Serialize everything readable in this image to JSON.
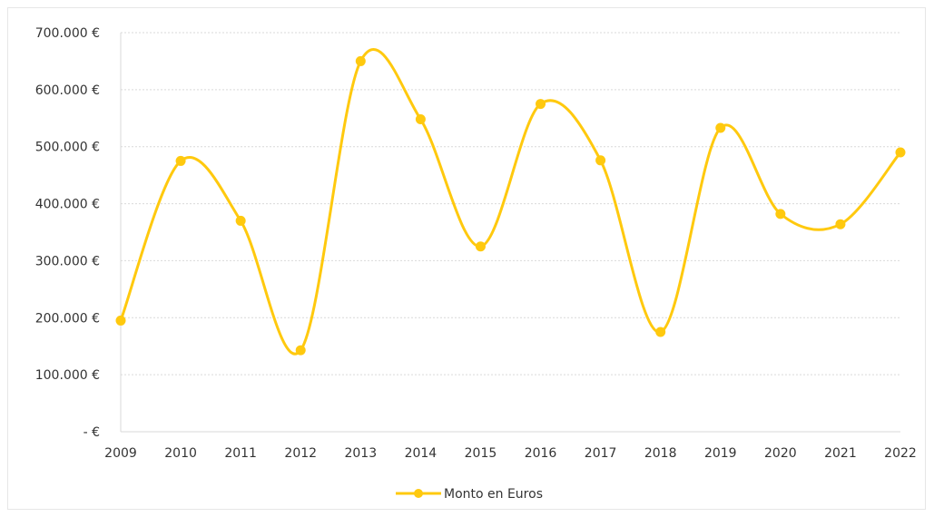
{
  "chart_data": {
    "type": "line",
    "smooth": true,
    "title": "",
    "xlabel": "",
    "ylabel": "",
    "x": [
      "2009",
      "2010",
      "2011",
      "2012",
      "2013",
      "2014",
      "2015",
      "2016",
      "2017",
      "2018",
      "2019",
      "2020",
      "2021",
      "2022"
    ],
    "series": [
      {
        "name": "Monto en Euros",
        "color": "#FFC90E",
        "values": [
          195000,
          475000,
          370000,
          143000,
          650000,
          548000,
          325000,
          575000,
          476000,
          175000,
          533000,
          382000,
          364000,
          490000
        ]
      }
    ],
    "ylim": [
      0,
      700000
    ],
    "yticks": [
      0,
      100000,
      200000,
      300000,
      400000,
      500000,
      600000,
      700000
    ],
    "ytick_labels": [
      "-   €",
      "100.000 €",
      "200.000 €",
      "300.000 €",
      "400.000 €",
      "500.000 €",
      "600.000 €",
      "700.000 €"
    ],
    "grid": true,
    "legend_position": "bottom"
  }
}
